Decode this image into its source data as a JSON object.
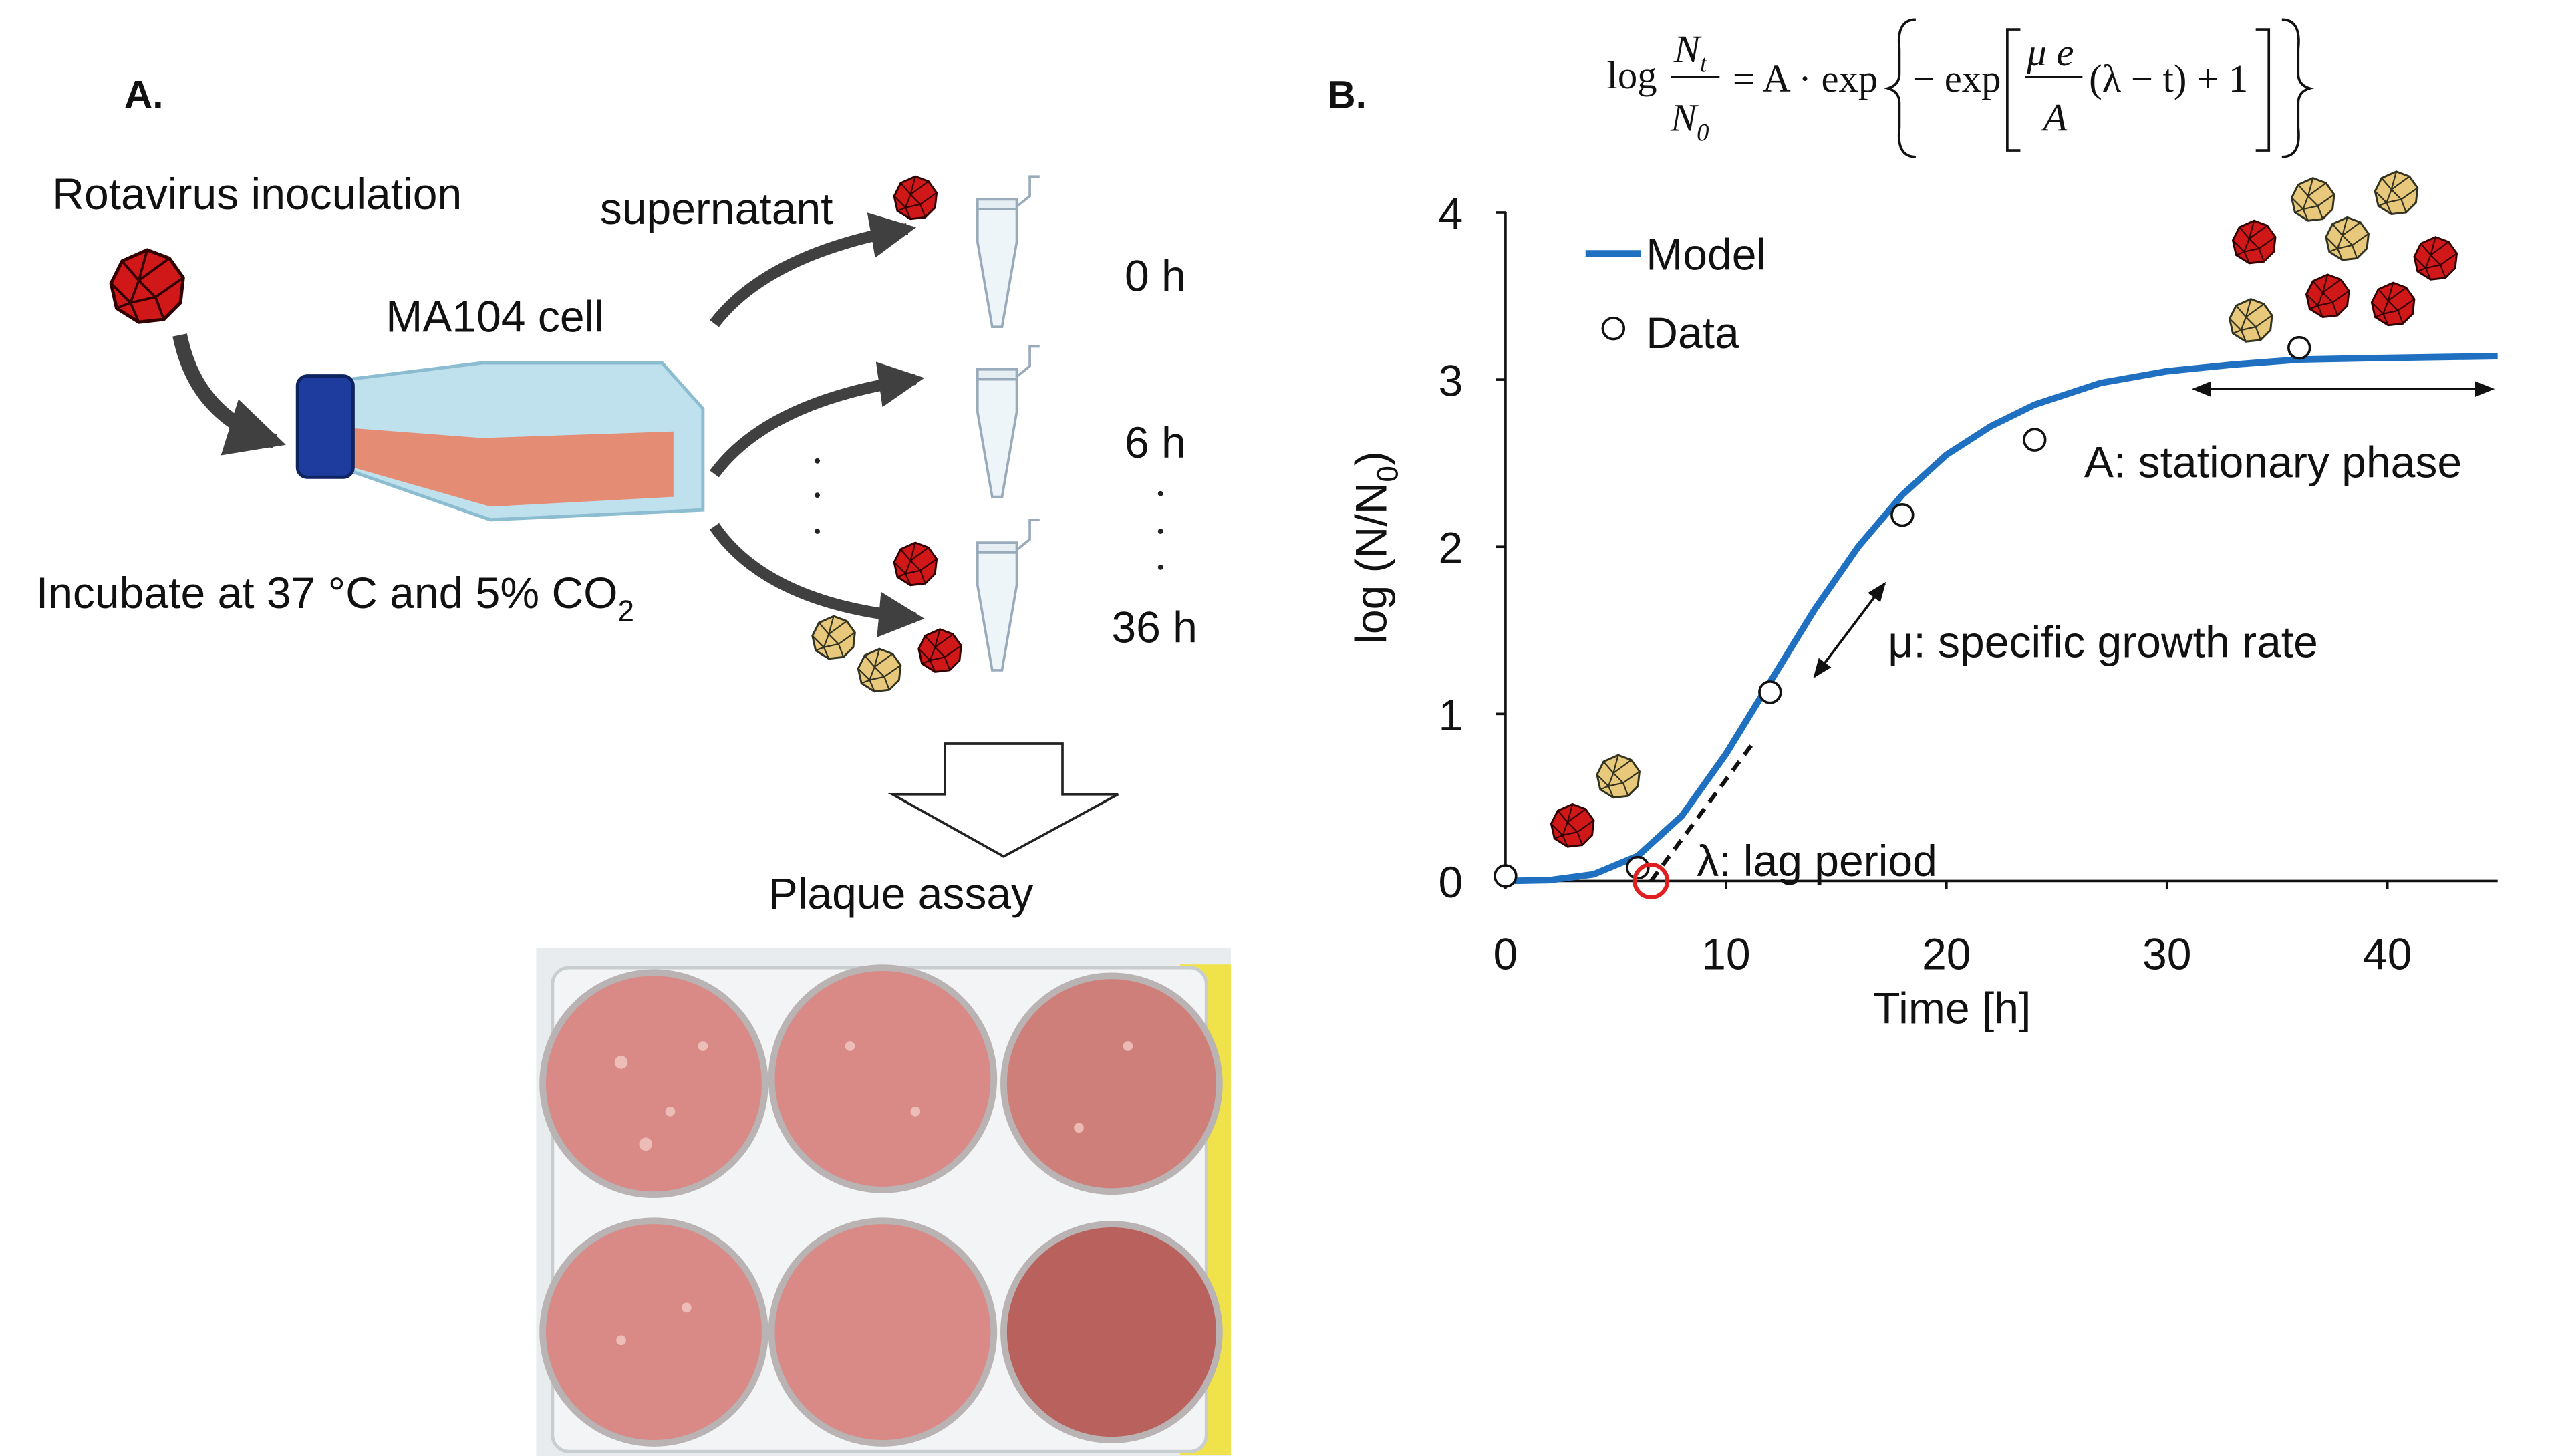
{
  "panel_a": {
    "label": "A.",
    "inoculation": "Rotavirus inoculation",
    "cell": "MA104 cell",
    "incubate": "Incubate at 37 °C and 5% CO",
    "incubate_sub": "2",
    "supernatant": "supernatant",
    "times": [
      "0 h",
      "6 h",
      "36 h"
    ],
    "assay": "Plaque assay"
  },
  "chart_data": {
    "type": "line",
    "panel_label": "B.",
    "equation": {
      "log": "log",
      "num": "N",
      "num_sub": "t",
      "den": "N",
      "den_sub": "0",
      "mid": "= A · exp",
      "minus_exp": "− exp",
      "inner_num": "μ e",
      "inner_den": "A",
      "tail": "(λ − t) + 1"
    },
    "x_label": "Time [h]",
    "y_label": {
      "main": "log (N/N",
      "sub": "0",
      "end": ")"
    },
    "xlim": [
      0,
      45
    ],
    "xticks": [
      0,
      10,
      20,
      30,
      40
    ],
    "ylim": [
      0,
      4
    ],
    "yticks": [
      0,
      1,
      2,
      3,
      4
    ],
    "series": [
      {
        "name": "Model",
        "style": "line",
        "color": "#1f70c1",
        "x": [
          0,
          2,
          4,
          6,
          8,
          10,
          12,
          14,
          16,
          18,
          20,
          22,
          24,
          27,
          30,
          33,
          36,
          40,
          45
        ],
        "values": [
          0,
          0.005,
          0.04,
          0.15,
          0.39,
          0.76,
          1.19,
          1.62,
          2.0,
          2.31,
          2.55,
          2.72,
          2.85,
          2.98,
          3.05,
          3.09,
          3.12,
          3.13,
          3.14
        ]
      },
      {
        "name": "Data",
        "style": "marker",
        "color": "#ffffff",
        "x": [
          0,
          6,
          12,
          18,
          24,
          36
        ],
        "values": [
          0.03,
          0.08,
          1.13,
          2.19,
          2.64,
          3.19
        ]
      }
    ],
    "lag": {
      "x": 6.6,
      "y": 0,
      "color": "#e02020"
    },
    "tangent": {
      "x": [
        6.6,
        11.2
      ],
      "values": [
        0,
        0.82
      ]
    },
    "annotations": {
      "lag": "λ: lag period",
      "mu": "μ: specific growth rate",
      "stationary": "A: stationary phase"
    }
  }
}
